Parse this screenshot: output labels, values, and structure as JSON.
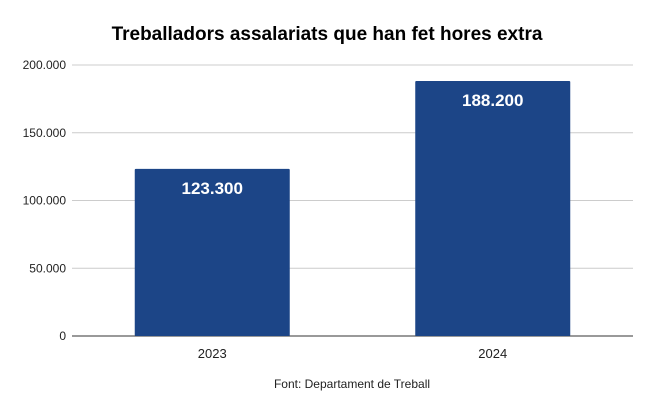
{
  "chart_data": {
    "type": "bar",
    "title": "Treballadors assalariats que han fet hores extra",
    "categories": [
      "2023",
      "2024"
    ],
    "values": [
      123300,
      188200
    ],
    "data_labels": [
      "123.300",
      "188.200"
    ],
    "ylim": [
      0,
      200000
    ],
    "yticks": [
      0,
      50000,
      100000,
      150000,
      200000
    ],
    "ytick_labels": [
      "0",
      "50.000",
      "100.000",
      "150.000",
      "200.000"
    ],
    "grid": true,
    "legend": "none",
    "bar_color": "#1c4587",
    "source": "Font: Departament de Treball"
  }
}
